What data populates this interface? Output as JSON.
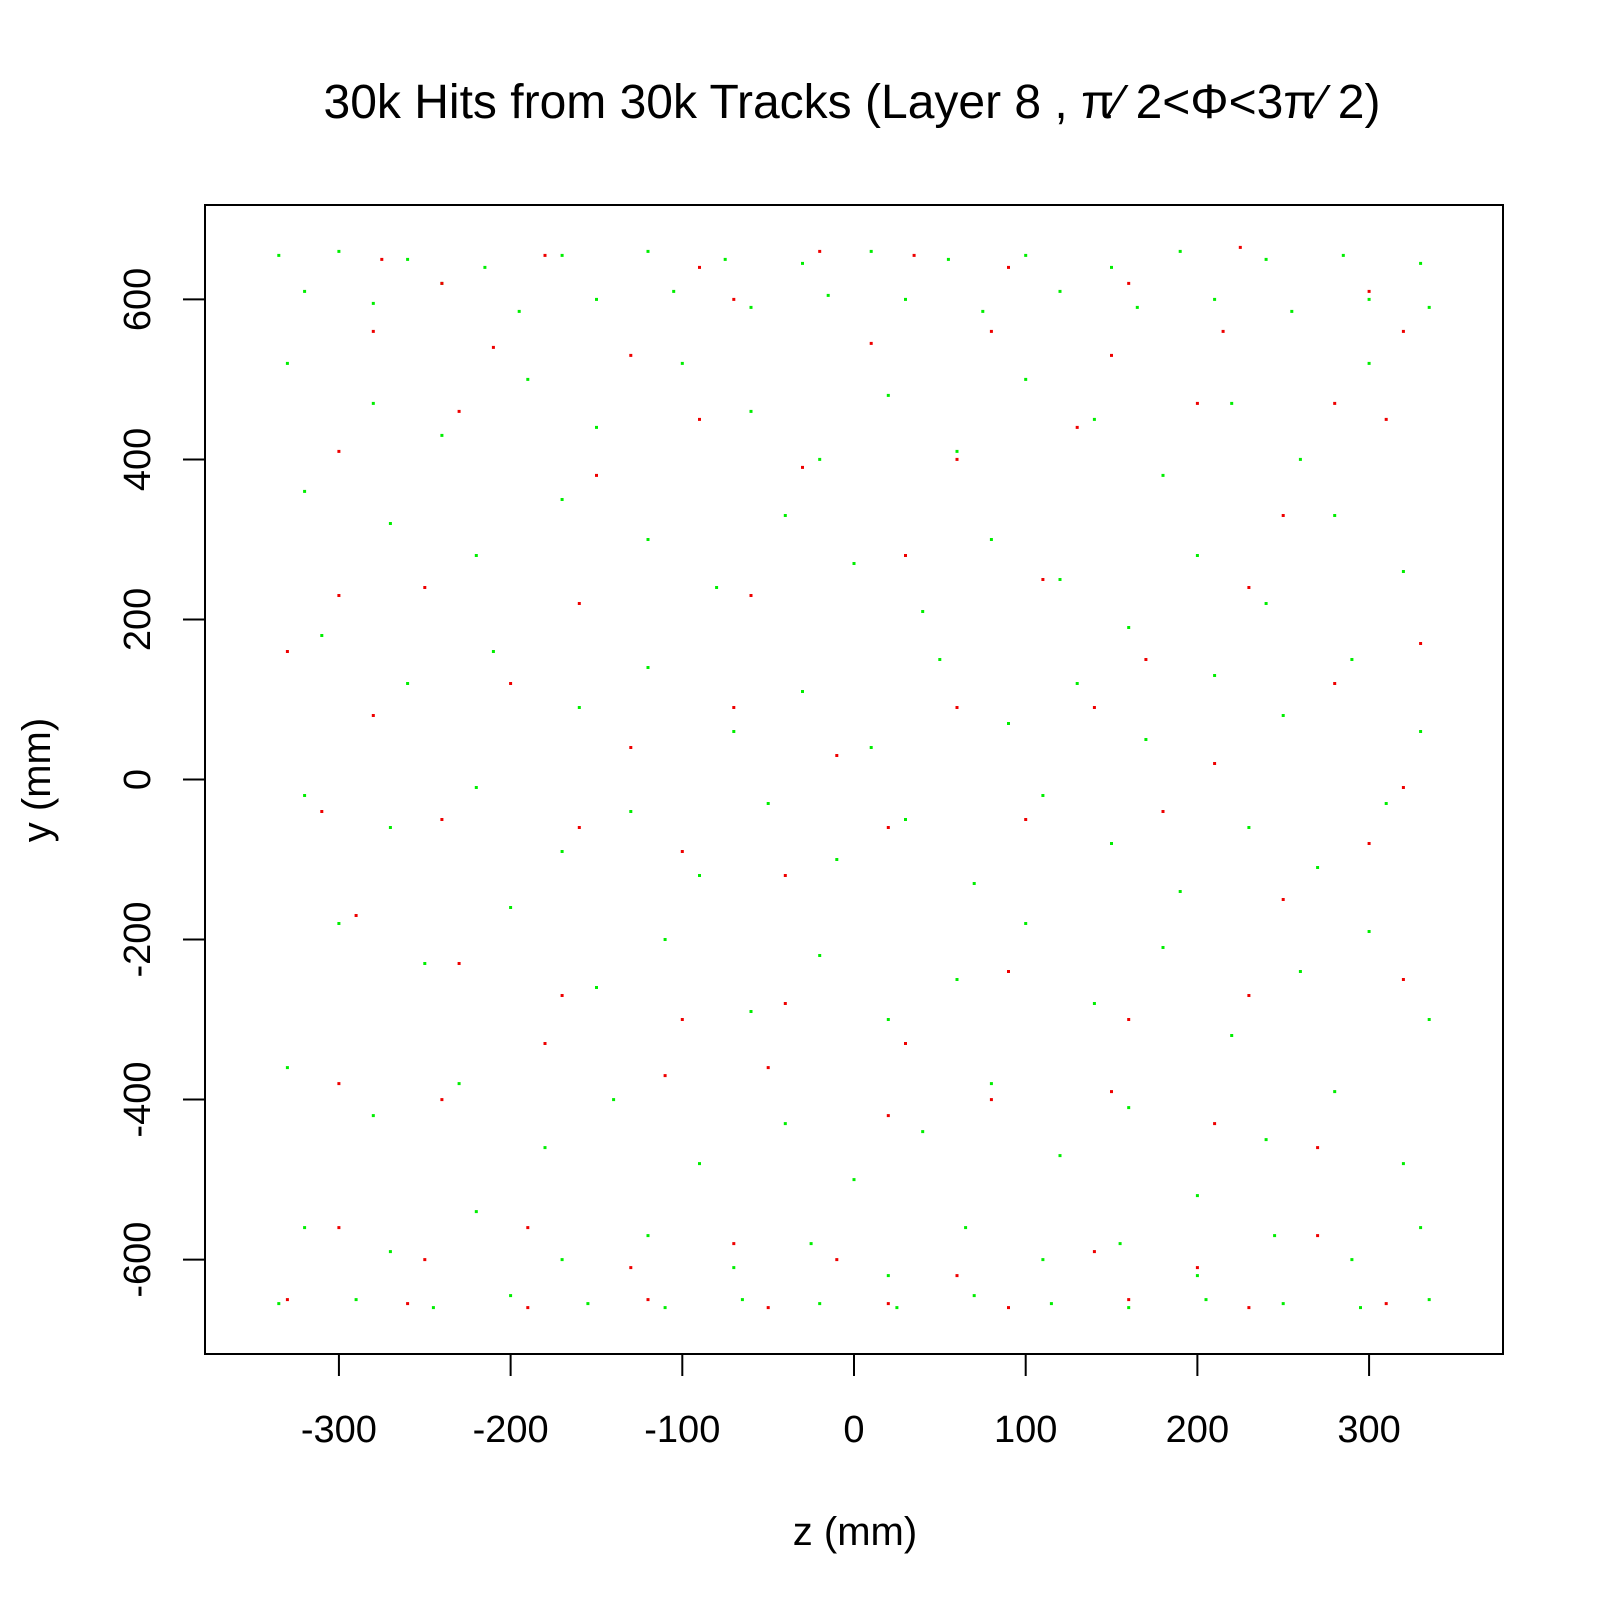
{
  "chart_data": {
    "type": "scatter",
    "title": "30k Hits from 30k Tracks (Layer 8 , π∕ 2<Φ<3π∕ 2)",
    "xlabel": "z (mm)",
    "ylabel": "y (mm)",
    "xlim": [
      -378,
      378
    ],
    "ylim": [
      -718,
      718
    ],
    "x_ticks": [
      -300,
      -200,
      -100,
      0,
      100,
      200,
      300
    ],
    "y_ticks": [
      -600,
      -400,
      -200,
      0,
      200,
      400,
      600
    ],
    "x_tick_labels": [
      "-300",
      "-200",
      "-100",
      "0",
      "100",
      "200",
      "300"
    ],
    "y_tick_labels": [
      "-600",
      "-400",
      "-200",
      "0",
      "200",
      "400",
      "600"
    ],
    "grid": false,
    "legend": "none",
    "colors": {
      "green": "#00ee00",
      "red": "#ee0000"
    },
    "series": [
      {
        "color": "#00ee00",
        "points": [
          [
            -335,
            655
          ],
          [
            -300,
            660
          ],
          [
            -260,
            650
          ],
          [
            -215,
            640
          ],
          [
            -170,
            655
          ],
          [
            -120,
            660
          ],
          [
            -75,
            650
          ],
          [
            -30,
            645
          ],
          [
            10,
            660
          ],
          [
            55,
            650
          ],
          [
            100,
            655
          ],
          [
            150,
            640
          ],
          [
            190,
            660
          ],
          [
            240,
            650
          ],
          [
            285,
            655
          ],
          [
            330,
            645
          ],
          [
            -320,
            610
          ],
          [
            -280,
            595
          ],
          [
            -240,
            620
          ],
          [
            -195,
            585
          ],
          [
            -150,
            600
          ],
          [
            -105,
            610
          ],
          [
            -60,
            590
          ],
          [
            -15,
            605
          ],
          [
            30,
            600
          ],
          [
            75,
            585
          ],
          [
            120,
            610
          ],
          [
            165,
            590
          ],
          [
            210,
            600
          ],
          [
            255,
            585
          ],
          [
            300,
            600
          ],
          [
            335,
            590
          ],
          [
            -330,
            520
          ],
          [
            -280,
            470
          ],
          [
            -240,
            430
          ],
          [
            -190,
            500
          ],
          [
            -150,
            440
          ],
          [
            -100,
            520
          ],
          [
            -60,
            460
          ],
          [
            -20,
            400
          ],
          [
            20,
            480
          ],
          [
            60,
            410
          ],
          [
            100,
            500
          ],
          [
            140,
            450
          ],
          [
            180,
            380
          ],
          [
            220,
            470
          ],
          [
            260,
            400
          ],
          [
            300,
            520
          ],
          [
            -320,
            360
          ],
          [
            -270,
            320
          ],
          [
            -220,
            280
          ],
          [
            -170,
            350
          ],
          [
            -120,
            300
          ],
          [
            -80,
            240
          ],
          [
            -40,
            330
          ],
          [
            0,
            270
          ],
          [
            40,
            210
          ],
          [
            80,
            300
          ],
          [
            120,
            250
          ],
          [
            160,
            190
          ],
          [
            200,
            280
          ],
          [
            240,
            220
          ],
          [
            280,
            330
          ],
          [
            320,
            260
          ],
          [
            -310,
            180
          ],
          [
            -260,
            120
          ],
          [
            -210,
            160
          ],
          [
            -160,
            90
          ],
          [
            -120,
            140
          ],
          [
            -70,
            60
          ],
          [
            -30,
            110
          ],
          [
            10,
            40
          ],
          [
            50,
            150
          ],
          [
            90,
            70
          ],
          [
            130,
            120
          ],
          [
            170,
            50
          ],
          [
            210,
            130
          ],
          [
            250,
            80
          ],
          [
            290,
            150
          ],
          [
            330,
            60
          ],
          [
            -320,
            -20
          ],
          [
            -270,
            -60
          ],
          [
            -220,
            -10
          ],
          [
            -170,
            -90
          ],
          [
            -130,
            -40
          ],
          [
            -90,
            -120
          ],
          [
            -50,
            -30
          ],
          [
            -10,
            -100
          ],
          [
            30,
            -50
          ],
          [
            70,
            -130
          ],
          [
            110,
            -20
          ],
          [
            150,
            -80
          ],
          [
            190,
            -140
          ],
          [
            230,
            -60
          ],
          [
            270,
            -110
          ],
          [
            310,
            -30
          ],
          [
            -300,
            -180
          ],
          [
            -250,
            -230
          ],
          [
            -200,
            -160
          ],
          [
            -150,
            -260
          ],
          [
            -110,
            -200
          ],
          [
            -60,
            -290
          ],
          [
            -20,
            -220
          ],
          [
            20,
            -300
          ],
          [
            60,
            -250
          ],
          [
            100,
            -180
          ],
          [
            140,
            -280
          ],
          [
            180,
            -210
          ],
          [
            220,
            -320
          ],
          [
            260,
            -240
          ],
          [
            300,
            -190
          ],
          [
            335,
            -300
          ],
          [
            -330,
            -360
          ],
          [
            -280,
            -420
          ],
          [
            -230,
            -380
          ],
          [
            -180,
            -460
          ],
          [
            -140,
            -400
          ],
          [
            -90,
            -480
          ],
          [
            -40,
            -430
          ],
          [
            0,
            -500
          ],
          [
            40,
            -440
          ],
          [
            80,
            -380
          ],
          [
            120,
            -470
          ],
          [
            160,
            -410
          ],
          [
            200,
            -520
          ],
          [
            240,
            -450
          ],
          [
            280,
            -390
          ],
          [
            320,
            -480
          ],
          [
            -320,
            -560
          ],
          [
            -270,
            -590
          ],
          [
            -220,
            -540
          ],
          [
            -170,
            -600
          ],
          [
            -120,
            -570
          ],
          [
            -70,
            -610
          ],
          [
            -25,
            -580
          ],
          [
            20,
            -620
          ],
          [
            65,
            -560
          ],
          [
            110,
            -600
          ],
          [
            155,
            -580
          ],
          [
            200,
            -620
          ],
          [
            245,
            -570
          ],
          [
            290,
            -600
          ],
          [
            330,
            -560
          ],
          [
            -335,
            -655
          ],
          [
            -290,
            -650
          ],
          [
            -245,
            -660
          ],
          [
            -200,
            -645
          ],
          [
            -155,
            -655
          ],
          [
            -110,
            -660
          ],
          [
            -65,
            -650
          ],
          [
            -20,
            -655
          ],
          [
            25,
            -660
          ],
          [
            70,
            -645
          ],
          [
            115,
            -655
          ],
          [
            160,
            -660
          ],
          [
            205,
            -650
          ],
          [
            250,
            -655
          ],
          [
            295,
            -660
          ],
          [
            335,
            -650
          ]
        ]
      },
      {
        "color": "#ee0000",
        "points": [
          [
            -275,
            650
          ],
          [
            -240,
            620
          ],
          [
            -180,
            655
          ],
          [
            -90,
            640
          ],
          [
            -20,
            660
          ],
          [
            35,
            655
          ],
          [
            90,
            640
          ],
          [
            160,
            620
          ],
          [
            225,
            665
          ],
          [
            300,
            610
          ],
          [
            -280,
            560
          ],
          [
            -210,
            540
          ],
          [
            -130,
            530
          ],
          [
            -70,
            600
          ],
          [
            10,
            545
          ],
          [
            80,
            560
          ],
          [
            150,
            530
          ],
          [
            215,
            560
          ],
          [
            280,
            470
          ],
          [
            320,
            560
          ],
          [
            -300,
            410
          ],
          [
            -230,
            460
          ],
          [
            -150,
            380
          ],
          [
            -90,
            450
          ],
          [
            -30,
            390
          ],
          [
            60,
            400
          ],
          [
            130,
            440
          ],
          [
            200,
            470
          ],
          [
            250,
            330
          ],
          [
            310,
            450
          ],
          [
            -300,
            230
          ],
          [
            -250,
            240
          ],
          [
            -160,
            220
          ],
          [
            -60,
            230
          ],
          [
            30,
            280
          ],
          [
            110,
            250
          ],
          [
            170,
            150
          ],
          [
            230,
            240
          ],
          [
            280,
            120
          ],
          [
            330,
            170
          ],
          [
            -330,
            160
          ],
          [
            -280,
            80
          ],
          [
            -200,
            120
          ],
          [
            -130,
            40
          ],
          [
            -70,
            90
          ],
          [
            -10,
            30
          ],
          [
            60,
            90
          ],
          [
            140,
            90
          ],
          [
            210,
            20
          ],
          [
            320,
            -10
          ],
          [
            -310,
            -40
          ],
          [
            -240,
            -50
          ],
          [
            -160,
            -60
          ],
          [
            -100,
            -90
          ],
          [
            -40,
            -120
          ],
          [
            20,
            -60
          ],
          [
            100,
            -50
          ],
          [
            180,
            -40
          ],
          [
            250,
            -150
          ],
          [
            300,
            -80
          ],
          [
            -290,
            -170
          ],
          [
            -230,
            -230
          ],
          [
            -170,
            -270
          ],
          [
            -100,
            -300
          ],
          [
            -40,
            -280
          ],
          [
            30,
            -330
          ],
          [
            90,
            -240
          ],
          [
            160,
            -300
          ],
          [
            230,
            -270
          ],
          [
            320,
            -250
          ],
          [
            -300,
            -380
          ],
          [
            -240,
            -400
          ],
          [
            -180,
            -330
          ],
          [
            -110,
            -370
          ],
          [
            -50,
            -360
          ],
          [
            20,
            -420
          ],
          [
            80,
            -400
          ],
          [
            150,
            -390
          ],
          [
            210,
            -430
          ],
          [
            270,
            -460
          ],
          [
            -300,
            -560
          ],
          [
            -250,
            -600
          ],
          [
            -190,
            -560
          ],
          [
            -130,
            -610
          ],
          [
            -70,
            -580
          ],
          [
            -10,
            -600
          ],
          [
            60,
            -620
          ],
          [
            140,
            -590
          ],
          [
            200,
            -610
          ],
          [
            270,
            -570
          ],
          [
            -330,
            -650
          ],
          [
            -260,
            -655
          ],
          [
            -190,
            -660
          ],
          [
            -120,
            -650
          ],
          [
            -50,
            -660
          ],
          [
            20,
            -655
          ],
          [
            90,
            -660
          ],
          [
            160,
            -650
          ],
          [
            230,
            -660
          ],
          [
            310,
            -655
          ]
        ]
      }
    ]
  }
}
